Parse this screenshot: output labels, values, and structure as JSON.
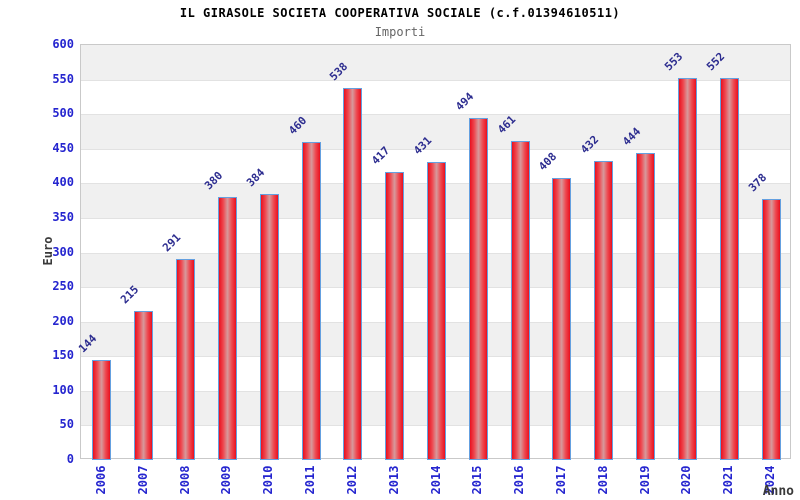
{
  "header": {
    "title": "IL GIRASOLE SOCIETA COOPERATIVA SOCIALE (c.f.01394610511)",
    "subtitle": "Importi"
  },
  "chart_data": {
    "type": "bar",
    "title": "IL GIRASOLE SOCIETA COOPERATIVA SOCIALE (c.f.01394610511)",
    "subtitle": "Importi",
    "categories": [
      "2006",
      "2007",
      "2008",
      "2009",
      "2010",
      "2011",
      "2012",
      "2013",
      "2014",
      "2015",
      "2016",
      "2017",
      "2018",
      "2019",
      "2020",
      "2021",
      "2024"
    ],
    "values": [
      144,
      215,
      291,
      380,
      384,
      460,
      538,
      417,
      431,
      494,
      461,
      408,
      432,
      444,
      553,
      552,
      378
    ],
    "xlabel": "Anno",
    "ylabel": "Euro",
    "ylim": [
      0,
      600
    ],
    "ytick_step": 50,
    "yticks": [
      0,
      50,
      100,
      150,
      200,
      250,
      300,
      350,
      400,
      450,
      500,
      550,
      600
    ],
    "legend": "none",
    "grid": "horizontal-bands-alternating",
    "colors": {
      "bar_edge_red": "#e9101e",
      "bar_center_light": "#d79a9c",
      "bar_border_blue": "#64a0e0",
      "tick_label_blue": "#2525cf",
      "value_label_navy": "#2c2c8f",
      "band_gray": "#f0f0f0",
      "title_black": "#000000",
      "subtitle_gray": "#666666",
      "axis_title_gray": "#3a3a3a",
      "plot_border": "#c9c9c9"
    }
  }
}
